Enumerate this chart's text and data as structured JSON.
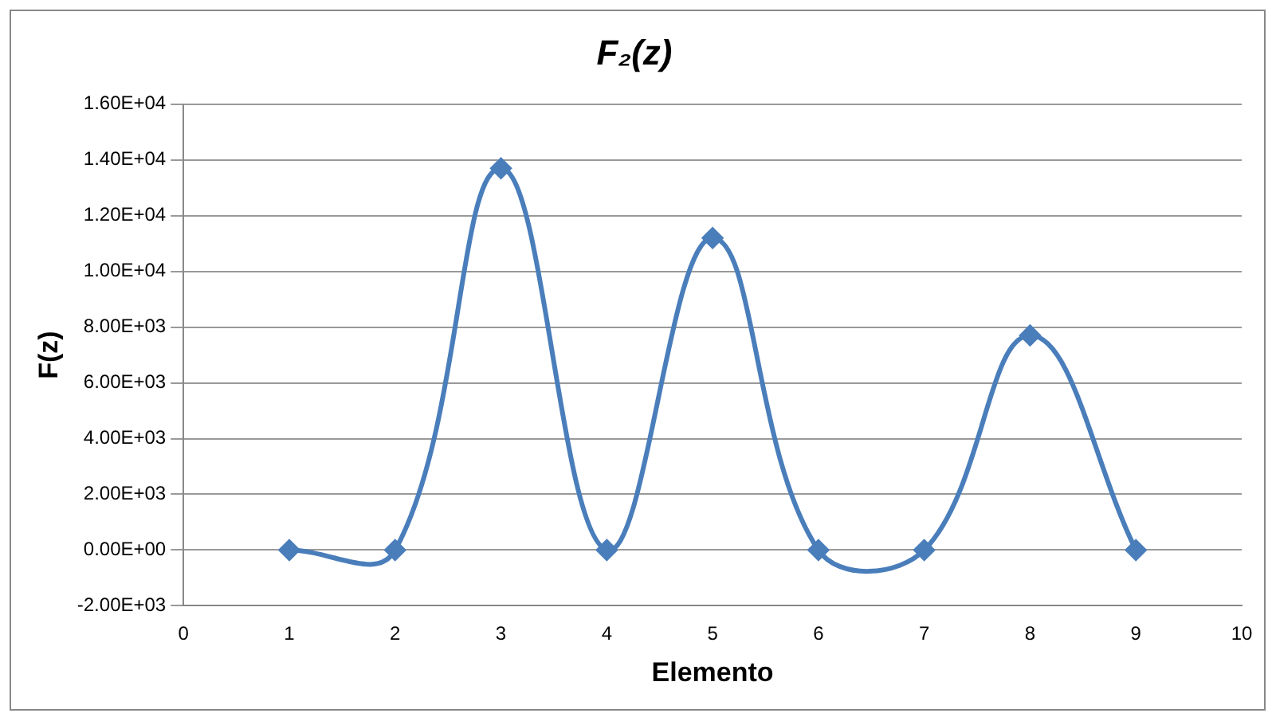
{
  "chart_data": {
    "type": "line",
    "title": "F₂(z)",
    "xlabel": "Elemento",
    "ylabel": "F(z)",
    "x": [
      1,
      2,
      3,
      4,
      5,
      6,
      7,
      8,
      9
    ],
    "series": [
      {
        "color": "#4a7ebb",
        "values": [
          0,
          0,
          13700,
          0,
          11200,
          0,
          0,
          7700,
          0
        ]
      }
    ],
    "xlim": [
      0,
      10
    ],
    "xticks": [
      0,
      1,
      2,
      3,
      4,
      5,
      6,
      7,
      8,
      9,
      10
    ],
    "ylim": [
      -2000,
      16000
    ],
    "yticks": [
      {
        "value": -2000,
        "label": "-2.00E+03"
      },
      {
        "value": 0,
        "label": "0.00E+00"
      },
      {
        "value": 2000,
        "label": "2.00E+03"
      },
      {
        "value": 4000,
        "label": "4.00E+03"
      },
      {
        "value": 6000,
        "label": "6.00E+03"
      },
      {
        "value": 8000,
        "label": "8.00E+03"
      },
      {
        "value": 10000,
        "label": "1.00E+04"
      },
      {
        "value": 12000,
        "label": "1.20E+04"
      },
      {
        "value": 14000,
        "label": "1.40E+04"
      },
      {
        "value": 16000,
        "label": "1.60E+04"
      }
    ],
    "grid": "y",
    "legend": false,
    "marker": "diamond",
    "line_style": "solid"
  }
}
